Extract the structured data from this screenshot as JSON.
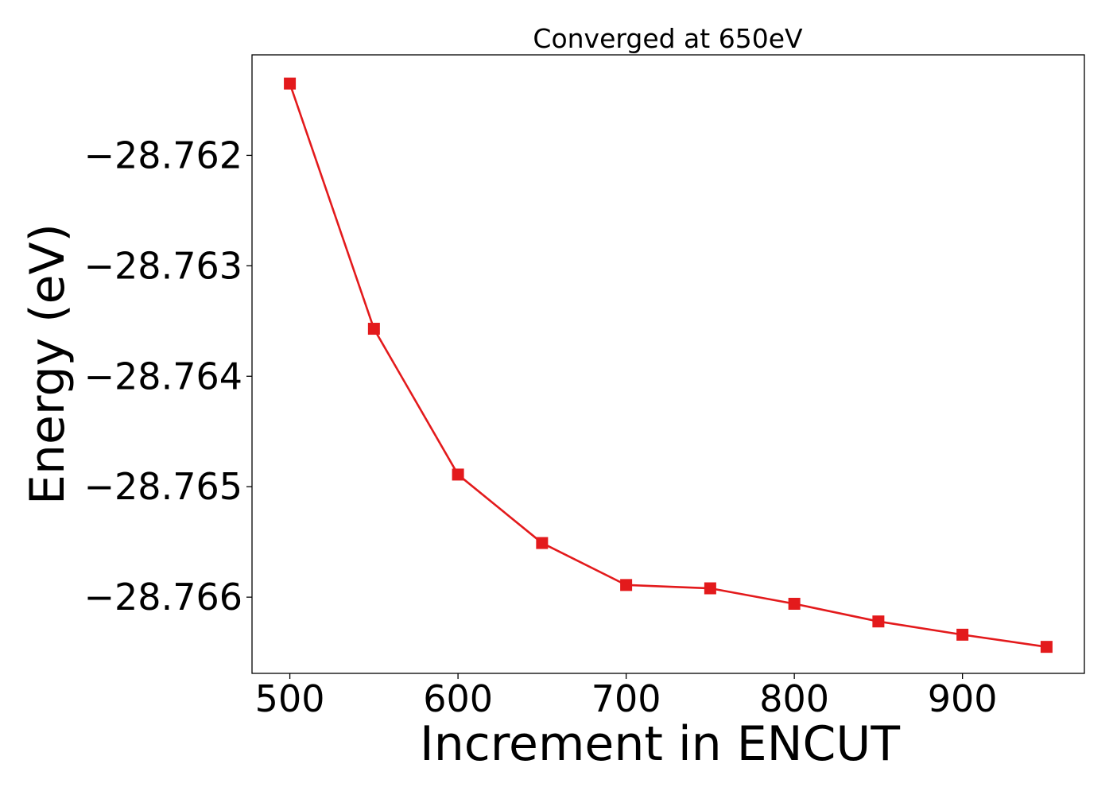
{
  "chart_data": {
    "type": "line",
    "title": "Converged at 650eV",
    "xlabel": "Increment in ENCUT",
    "ylabel": "Energy (eV)",
    "x": [
      500,
      550,
      600,
      650,
      700,
      750,
      800,
      850,
      900,
      950
    ],
    "series": [
      {
        "values": [
          -28.76135,
          -28.76357,
          -28.76489,
          -28.76551,
          -28.76589,
          -28.76592,
          -28.76606,
          -28.76622,
          -28.76634,
          -28.76645
        ],
        "color": "#e31a1c",
        "marker": "square"
      }
    ],
    "xlim": [
      477.5,
      972.5
    ],
    "ylim": [
      -28.76669,
      -28.76109
    ],
    "xticks": [
      500,
      600,
      700,
      800,
      900
    ],
    "xtick_labels": [
      "500",
      "600",
      "700",
      "800",
      "900"
    ],
    "yticks": [
      -28.762,
      -28.763,
      -28.764,
      -28.765,
      -28.766
    ],
    "ytick_labels": [
      "−28.762",
      "−28.763",
      "−28.764",
      "−28.765",
      "−28.766"
    ],
    "grid": false,
    "legend": "none"
  }
}
